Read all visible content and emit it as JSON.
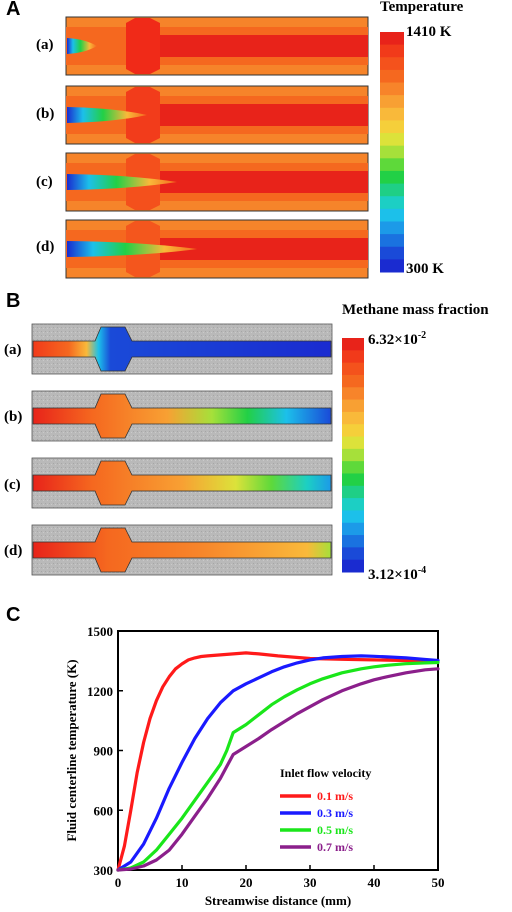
{
  "panels": {
    "a": {
      "letter": "A",
      "colorbar_title": "Temperature",
      "colorbar_max": "1410 K",
      "colorbar_min": "300 K",
      "rows": [
        "(a)",
        "(b)",
        "(c)",
        "(d)"
      ]
    },
    "b": {
      "letter": "B",
      "colorbar_title": "Methane mass fraction",
      "colorbar_max": "6.32×10",
      "colorbar_max_exp": "-2",
      "colorbar_min": "3.12×10",
      "colorbar_min_exp": "-4",
      "rows": [
        "(a)",
        "(b)",
        "(c)",
        "(d)"
      ]
    },
    "c": {
      "letter": "C"
    }
  },
  "colorbar_colors": [
    "#e8231a",
    "#f13a1a",
    "#f4521c",
    "#f5681f",
    "#f7842a",
    "#f8a033",
    "#f9b93a",
    "#f5cf3a",
    "#dce23a",
    "#a6e03a",
    "#5ed93a",
    "#22d046",
    "#1fcf86",
    "#1ccfc4",
    "#1cc0ea",
    "#1c9ae8",
    "#1a72e0",
    "#1a4ad8",
    "#1a2bd0"
  ],
  "chart_data": {
    "type": "line",
    "xlabel": "Streamwise distance (mm)",
    "ylabel": "Fluid centerline temperature (K)",
    "xlim": [
      0,
      50
    ],
    "ylim": [
      300,
      1500
    ],
    "xticks": [
      0,
      10,
      20,
      30,
      40,
      50
    ],
    "yticks": [
      300,
      600,
      900,
      1200,
      1500
    ],
    "legend_title": "Inlet flow velocity",
    "series": [
      {
        "name": "0.1 m/s",
        "color": "#ff1a1a",
        "x": [
          0,
          1,
          2,
          3,
          4,
          5,
          6,
          7,
          8,
          9,
          10,
          11,
          12,
          13,
          14,
          16,
          18,
          20,
          22,
          25,
          30,
          35,
          40,
          45,
          50
        ],
        "y": [
          300,
          420,
          600,
          790,
          940,
          1060,
          1150,
          1220,
          1270,
          1310,
          1335,
          1355,
          1365,
          1372,
          1375,
          1380,
          1385,
          1390,
          1385,
          1375,
          1362,
          1358,
          1355,
          1352,
          1350
        ]
      },
      {
        "name": "0.3 m/s",
        "color": "#1a1aff",
        "x": [
          0,
          2,
          4,
          6,
          8,
          10,
          12,
          14,
          16,
          18,
          20,
          22,
          24,
          26,
          28,
          30,
          32,
          35,
          38,
          40,
          42,
          45,
          48,
          50
        ],
        "y": [
          300,
          340,
          430,
          560,
          710,
          840,
          960,
          1060,
          1140,
          1200,
          1235,
          1265,
          1295,
          1320,
          1340,
          1355,
          1365,
          1372,
          1375,
          1373,
          1370,
          1365,
          1357,
          1352
        ]
      },
      {
        "name": "0.5 m/s",
        "color": "#1ae61a",
        "x": [
          0,
          2,
          4,
          6,
          8,
          10,
          12,
          14,
          16,
          17,
          18,
          20,
          22,
          24,
          26,
          28,
          30,
          32,
          35,
          38,
          40,
          42,
          45,
          48,
          50
        ],
        "y": [
          300,
          310,
          340,
          400,
          480,
          560,
          650,
          740,
          830,
          900,
          990,
          1030,
          1080,
          1130,
          1170,
          1205,
          1235,
          1260,
          1290,
          1310,
          1320,
          1328,
          1336,
          1340,
          1342
        ]
      },
      {
        "name": "0.7 m/s",
        "color": "#8b1f8b",
        "x": [
          0,
          2,
          4,
          6,
          8,
          10,
          12,
          14,
          16,
          17,
          18,
          20,
          22,
          24,
          26,
          28,
          30,
          32,
          35,
          38,
          40,
          42,
          45,
          48,
          50
        ],
        "y": [
          300,
          305,
          320,
          350,
          400,
          480,
          570,
          660,
          760,
          820,
          880,
          920,
          960,
          1005,
          1045,
          1085,
          1120,
          1155,
          1200,
          1235,
          1255,
          1270,
          1290,
          1305,
          1310
        ]
      }
    ]
  }
}
